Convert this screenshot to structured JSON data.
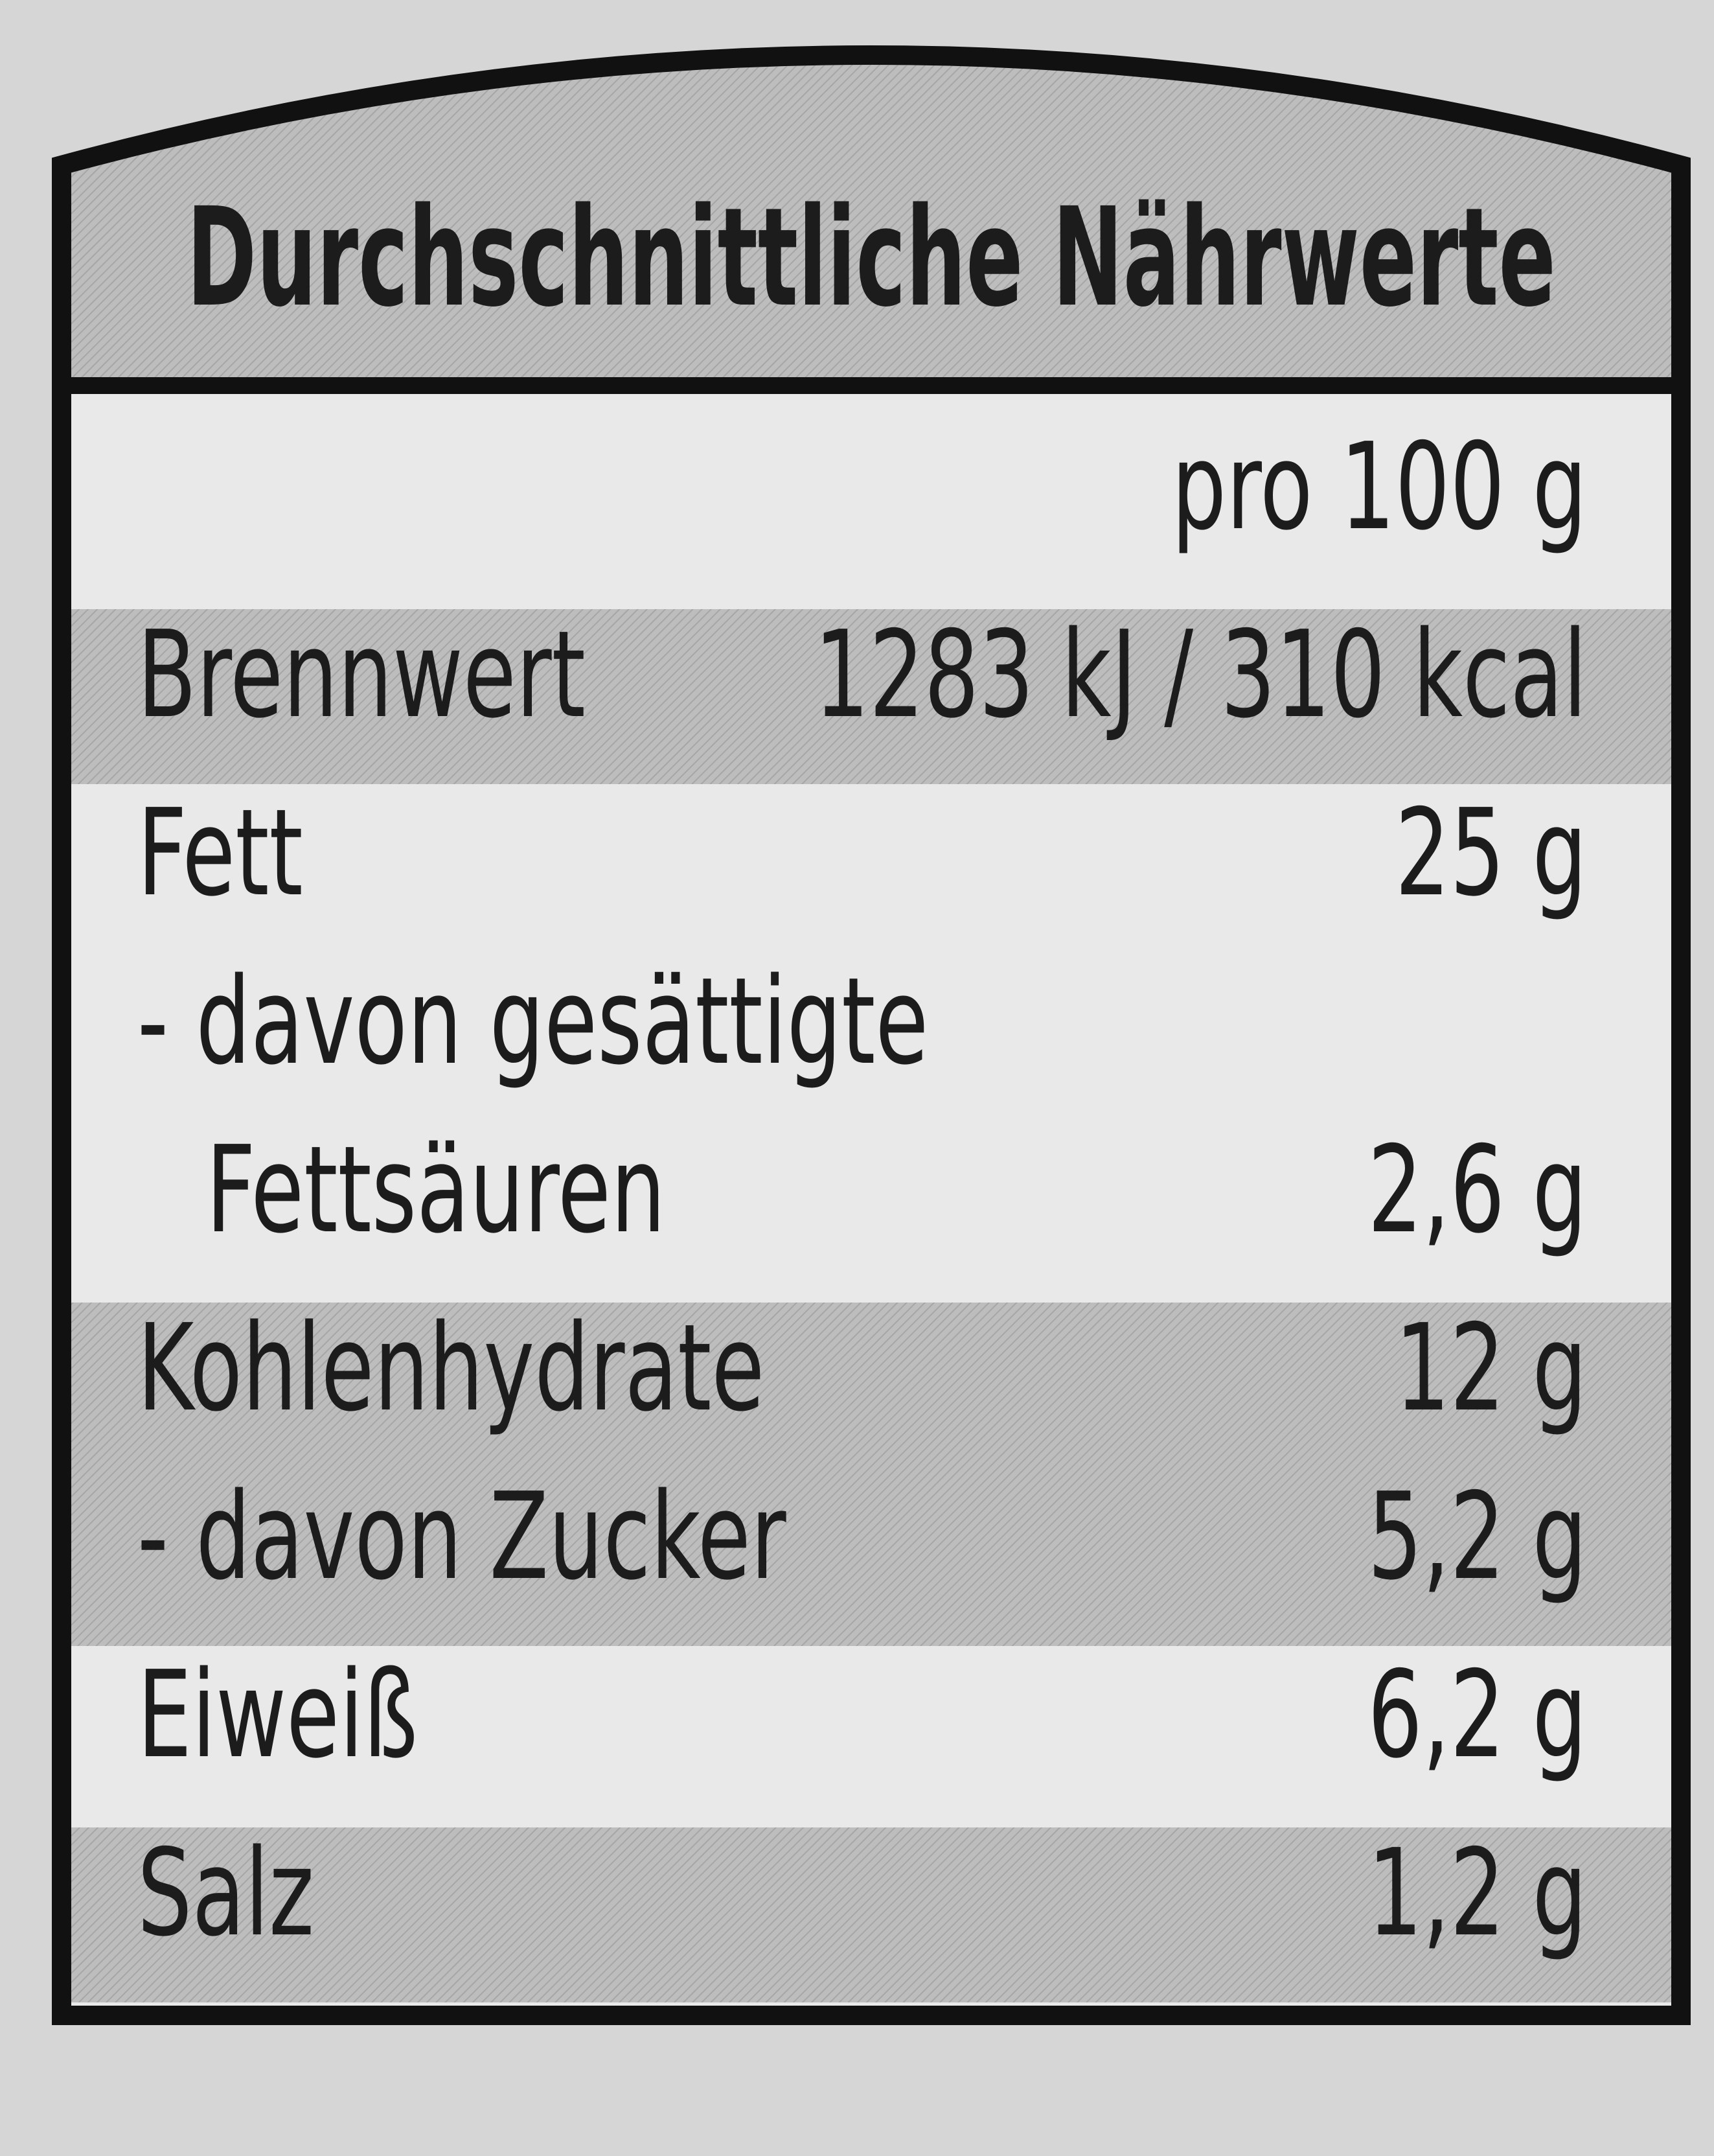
{
  "header": {
    "title": "Durchschnittliche Nährwerte"
  },
  "table": {
    "column_header": "pro 100 g",
    "groups": [
      {
        "rows": [
          {
            "label": "Brennwert",
            "value": "1283 kJ / 310 kcal"
          }
        ]
      },
      {
        "rows": [
          {
            "label": "Fett",
            "value": "25 g"
          },
          {
            "label": "- davon gesättigte"
          },
          {
            "label": "Fettsäuren",
            "value": "2,6 g"
          }
        ]
      },
      {
        "rows": [
          {
            "label": "Kohlenhydrate",
            "value": "12 g"
          },
          {
            "label": "- davon Zucker",
            "value": "5,2 g"
          }
        ]
      },
      {
        "rows": [
          {
            "label": "Eiweiß",
            "value": "6,2 g"
          }
        ]
      },
      {
        "rows": [
          {
            "label": "Salz",
            "value": "1,2 g"
          }
        ]
      }
    ]
  }
}
